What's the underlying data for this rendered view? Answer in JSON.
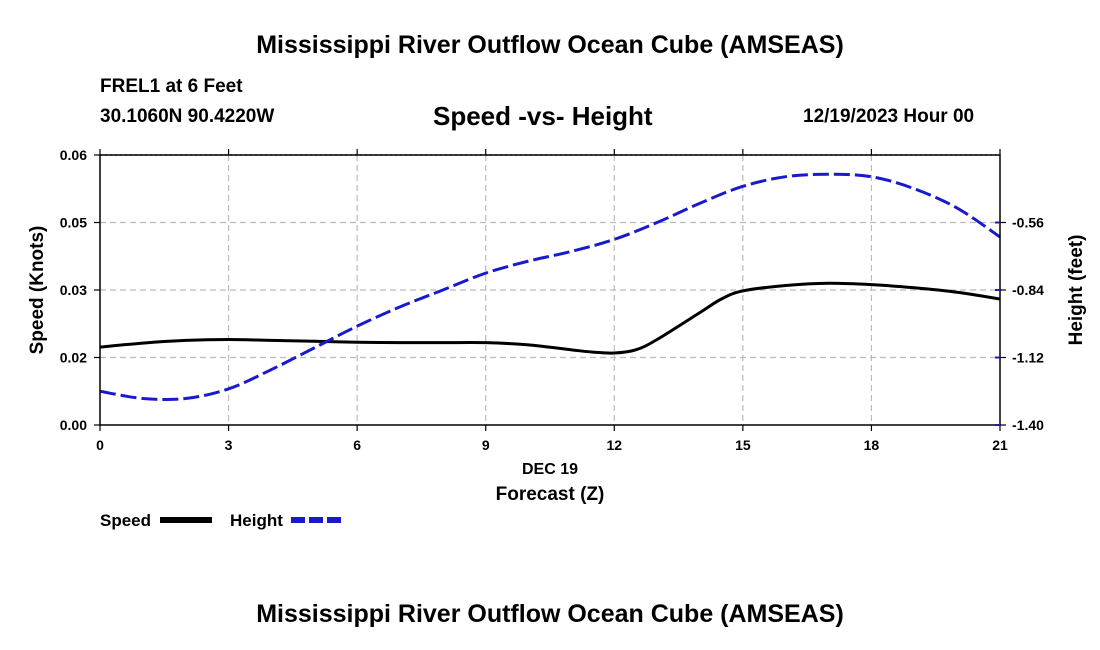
{
  "header": {
    "title": "Mississippi River Outflow Ocean Cube (AMSEAS)",
    "station": "FREL1 at 6 Feet",
    "coordinates": "30.1060N  90.4220W",
    "subtitle": "Speed -vs- Height",
    "datetime": "12/19/2023 Hour 00"
  },
  "footer": {
    "title": "Mississippi River Outflow Ocean Cube (AMSEAS)"
  },
  "colors": {
    "speed": "#000000",
    "height": "#1a1acd",
    "grid": "#bbbbbb"
  },
  "chart_data": {
    "type": "line",
    "title": "Speed -vs- Height",
    "xlabel": "Forecast (Z)",
    "xlabel_date": "DEC 19",
    "ylabel_left": "Speed (Knots)",
    "ylabel_right": "Height (feet)",
    "xlim": [
      0,
      21
    ],
    "ylim_left": [
      0,
      0.06
    ],
    "ylim_right": [
      -1.4,
      -0.28
    ],
    "x_ticks": [
      0,
      3,
      6,
      9,
      12,
      15,
      18,
      21
    ],
    "x_tick_labels": [
      "0",
      "3",
      "6",
      "9",
      "12",
      "15",
      "18",
      "21"
    ],
    "y_left_ticks": [
      0,
      0.015,
      0.03,
      0.045,
      0.06
    ],
    "y_left_tick_labels": [
      "0.00",
      "0.02",
      "0.03",
      "0.05",
      "0.06"
    ],
    "y_right_ticks": [
      -1.4,
      -1.12,
      -0.84,
      -0.56
    ],
    "y_right_tick_labels": [
      "-1.40",
      "-1.12",
      "-0.84",
      "-0.56"
    ],
    "grid": true,
    "legend_position": "bottom-left",
    "series": [
      {
        "name": "Speed",
        "axis": "left",
        "style": "solid",
        "x": [
          0,
          1,
          2,
          3,
          4,
          5,
          6,
          7,
          8,
          9,
          10,
          11,
          11.5,
          12,
          12.5,
          13,
          14,
          14.5,
          15,
          16,
          17,
          18,
          19,
          20,
          21
        ],
        "values": [
          0.0173,
          0.0182,
          0.0188,
          0.019,
          0.0188,
          0.0186,
          0.0184,
          0.0183,
          0.0183,
          0.0183,
          0.0178,
          0.0167,
          0.0162,
          0.016,
          0.0167,
          0.019,
          0.025,
          0.028,
          0.0298,
          0.031,
          0.0315,
          0.0312,
          0.0305,
          0.0295,
          0.028
        ]
      },
      {
        "name": "Height",
        "axis": "right",
        "style": "dashed",
        "x": [
          0,
          1,
          2,
          3,
          4,
          5,
          6,
          7,
          8,
          9,
          10,
          11,
          12,
          13,
          14,
          15,
          16,
          17,
          18,
          19,
          20,
          21
        ],
        "values": [
          -1.26,
          -1.29,
          -1.29,
          -1.25,
          -1.17,
          -1.08,
          -0.99,
          -0.91,
          -0.84,
          -0.77,
          -0.72,
          -0.68,
          -0.63,
          -0.56,
          -0.48,
          -0.41,
          -0.37,
          -0.36,
          -0.37,
          -0.42,
          -0.5,
          -0.62
        ]
      }
    ]
  }
}
